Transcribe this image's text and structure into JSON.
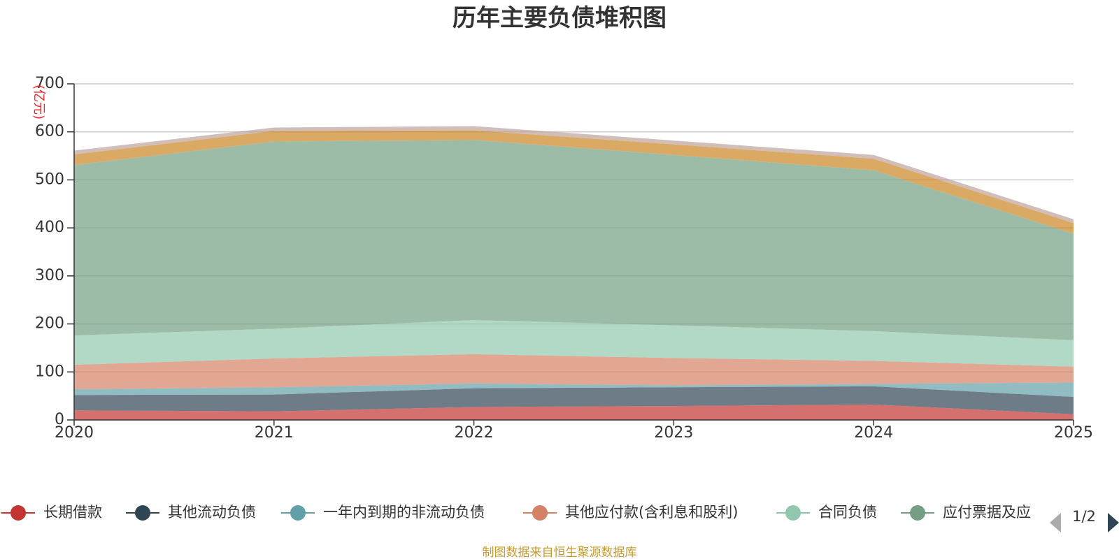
{
  "chart_data": {
    "type": "area",
    "stacked": true,
    "title": "历年主要负债堆积图",
    "ylabel": "(亿元)",
    "ylim": [
      0,
      700
    ],
    "yticks": [
      "0",
      "100",
      "200",
      "300",
      "400",
      "500",
      "600",
      "700"
    ],
    "x": [
      "2020",
      "2021",
      "2022",
      "2023",
      "2024",
      "2025"
    ],
    "grid": true,
    "legend_position": "bottom",
    "series": [
      {
        "name": "长期借款",
        "color": "#c23531",
        "values": [
          20,
          18,
          27,
          29,
          32,
          12
        ]
      },
      {
        "name": "其他流动负债",
        "color": "#2f4554",
        "values": [
          32,
          35,
          39,
          39,
          38,
          36
        ]
      },
      {
        "name": "一年内到期的非流动负债",
        "color": "#61a0a8",
        "values": [
          12,
          15,
          10,
          4,
          5,
          30
        ]
      },
      {
        "name": "其他应付款(含利息和股利)",
        "color": "#d48265",
        "values": [
          51,
          60,
          61,
          57,
          48,
          33
        ]
      },
      {
        "name": "合同负债",
        "color": "#91c7ae",
        "values": [
          61,
          62,
          71,
          68,
          62,
          55
        ]
      },
      {
        "name": "应付票据及应付账款",
        "color": "#749f83",
        "values": [
          355,
          390,
          375,
          355,
          335,
          222
        ]
      },
      {
        "name": "",
        "color": "#ca8622",
        "values": [
          22,
          22,
          20,
          22,
          24,
          22
        ]
      },
      {
        "name": "",
        "color": "#bda29a",
        "values": [
          8,
          7,
          9,
          8,
          8,
          8
        ]
      }
    ]
  },
  "legend": {
    "visible_labels": [
      "长期借款",
      "其他流动负债",
      "一年内到期的非流动负债",
      "其他应付款(含利息和股利)",
      "合同负债",
      "应付票据及应"
    ],
    "pager": "1/2"
  },
  "source": "制图数据来自恒生聚源数据库"
}
